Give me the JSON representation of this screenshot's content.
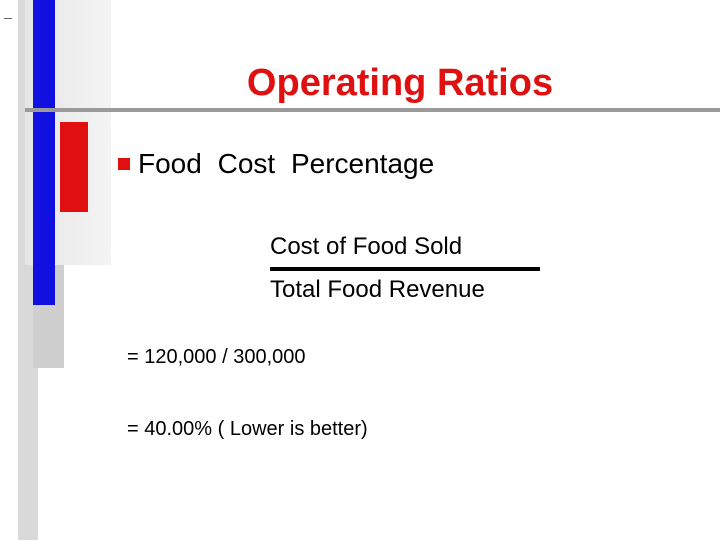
{
  "title": "Operating Ratios",
  "bullet": "Food Cost Percentage",
  "formula": {
    "numerator": "Cost of Food Sold",
    "denominator": "Total Food Revenue"
  },
  "calculation": "= 120,000 / 300,000",
  "result": "= 40.00% ( Lower is better)"
}
